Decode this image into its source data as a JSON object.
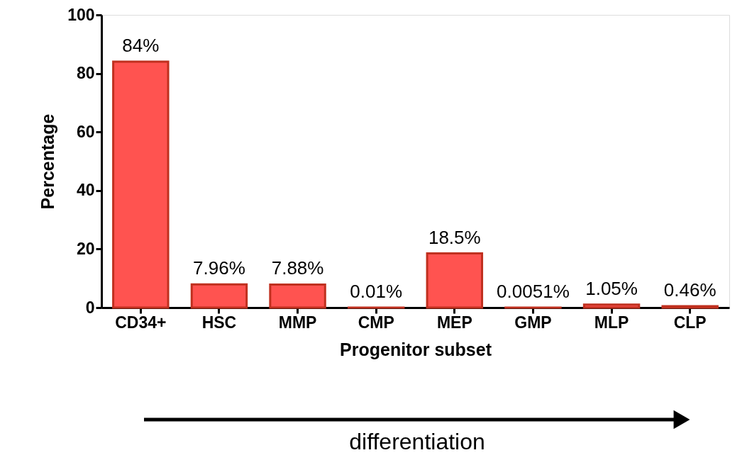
{
  "chart_data": {
    "type": "bar",
    "xlabel": "Progenitor subset",
    "ylabel": "Percentage",
    "categories": [
      "CD34+",
      "HSC",
      "MMP",
      "CMP",
      "MEP",
      "GMP",
      "MLP",
      "CLP"
    ],
    "values": [
      84,
      7.96,
      7.88,
      0.01,
      18.5,
      0.0051,
      1.05,
      0.46
    ],
    "value_labels": [
      "84%",
      "7.96%",
      "7.88%",
      "0.01%",
      "18.5%",
      "0.0051%",
      "1.05%",
      "0.46%"
    ],
    "color": "#ff5350",
    "ylim": [
      0,
      100
    ],
    "yticks": [
      0,
      20,
      40,
      60,
      80,
      100
    ],
    "grid": false,
    "annotations": [
      "differentiation"
    ]
  }
}
